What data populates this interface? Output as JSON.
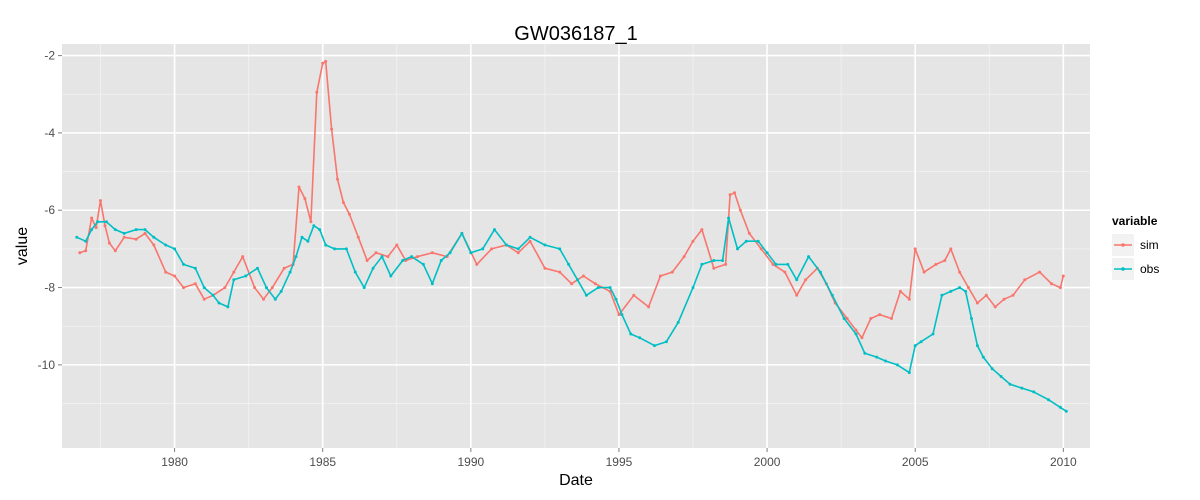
{
  "chart_data": {
    "type": "line",
    "title": "GW036187_1",
    "xlabel": "Date",
    "ylabel": "value",
    "x_range": [
      1976.2,
      2010.9
    ],
    "ylim": [
      -12.15,
      -1.7
    ],
    "x_ticks": [
      1980,
      1985,
      1990,
      1995,
      2000,
      2005,
      2010
    ],
    "x_tick_labels": [
      "1980",
      "1985",
      "1990",
      "1995",
      "2000",
      "2005",
      "2010"
    ],
    "y_ticks": [
      -10,
      -8,
      -6,
      -4,
      -2
    ],
    "y_tick_labels": [
      "-10",
      "-8",
      "-6",
      "-4",
      "-2"
    ],
    "grid": true,
    "legend": {
      "title": "variable",
      "position": "right"
    },
    "colors": {
      "sim": "#f8766d",
      "obs": "#00bfc4",
      "panel": "#e5e5e5",
      "grid": "#ffffff"
    },
    "series": [
      {
        "name": "sim",
        "color": "#f8766d",
        "x": [
          1976.8,
          1977.0,
          1977.2,
          1977.35,
          1977.5,
          1977.65,
          1977.8,
          1978.0,
          1978.3,
          1978.7,
          1979.0,
          1979.3,
          1979.7,
          1980.0,
          1980.3,
          1980.7,
          1981.0,
          1981.3,
          1981.7,
          1982.0,
          1982.3,
          1982.7,
          1983.0,
          1983.3,
          1983.7,
          1984.0,
          1984.2,
          1984.4,
          1984.6,
          1984.8,
          1985.0,
          1985.1,
          1985.3,
          1985.5,
          1985.7,
          1985.9,
          1986.2,
          1986.5,
          1986.8,
          1987.2,
          1987.5,
          1987.8,
          1988.2,
          1988.7,
          1989.2,
          1989.7,
          1990.2,
          1990.7,
          1991.2,
          1991.6,
          1992.0,
          1992.5,
          1993.0,
          1993.4,
          1993.8,
          1994.2,
          1994.7,
          1995.0,
          1995.5,
          1996.0,
          1996.4,
          1996.8,
          1997.2,
          1997.5,
          1997.8,
          1998.2,
          1998.6,
          1998.75,
          1998.9,
          1999.1,
          1999.4,
          1999.8,
          2000.2,
          2000.6,
          2001.0,
          2001.3,
          2001.7,
          2002.0,
          2002.3,
          2002.7,
          2003.0,
          2003.2,
          2003.5,
          2003.8,
          2004.2,
          2004.5,
          2004.8,
          2005.0,
          2005.3,
          2005.7,
          2006.0,
          2006.2,
          2006.5,
          2006.8,
          2007.1,
          2007.4,
          2007.7,
          2008.0,
          2008.3,
          2008.7,
          2009.2,
          2009.6,
          2009.9,
          2010.0
        ],
        "values": [
          -7.1,
          -7.05,
          -6.2,
          -6.45,
          -5.75,
          -6.4,
          -6.85,
          -7.05,
          -6.7,
          -6.75,
          -6.6,
          -6.9,
          -7.6,
          -7.7,
          -8.0,
          -7.9,
          -8.3,
          -8.2,
          -8.0,
          -7.6,
          -7.2,
          -8.0,
          -8.3,
          -8.0,
          -7.5,
          -7.4,
          -5.4,
          -5.7,
          -6.3,
          -2.95,
          -2.2,
          -2.15,
          -3.9,
          -5.2,
          -5.8,
          -6.1,
          -6.7,
          -7.3,
          -7.1,
          -7.2,
          -6.9,
          -7.3,
          -7.2,
          -7.1,
          -7.2,
          -6.6,
          -7.4,
          -7.0,
          -6.9,
          -7.1,
          -6.8,
          -7.5,
          -7.6,
          -7.9,
          -7.7,
          -7.9,
          -8.1,
          -8.7,
          -8.2,
          -8.5,
          -7.7,
          -7.6,
          -7.2,
          -6.8,
          -6.5,
          -7.5,
          -7.4,
          -5.6,
          -5.55,
          -6.0,
          -6.6,
          -7.0,
          -7.4,
          -7.6,
          -8.2,
          -7.8,
          -7.5,
          -7.9,
          -8.4,
          -8.8,
          -9.1,
          -9.3,
          -8.8,
          -8.7,
          -8.8,
          -8.1,
          -8.3,
          -7.0,
          -7.6,
          -7.4,
          -7.3,
          -7.0,
          -7.6,
          -8.0,
          -8.4,
          -8.2,
          -8.5,
          -8.3,
          -8.2,
          -7.8,
          -7.6,
          -7.9,
          -8.0,
          -7.7
        ]
      },
      {
        "name": "obs",
        "color": "#00bfc4",
        "x": [
          1976.7,
          1977.0,
          1977.2,
          1977.4,
          1977.7,
          1978.0,
          1978.3,
          1978.7,
          1979.0,
          1979.3,
          1979.7,
          1980.0,
          1980.3,
          1980.7,
          1981.0,
          1981.3,
          1981.5,
          1981.8,
          1982.0,
          1982.4,
          1982.8,
          1983.1,
          1983.4,
          1983.6,
          1983.9,
          1984.1,
          1984.3,
          1984.5,
          1984.7,
          1984.9,
          1985.1,
          1985.4,
          1985.8,
          1986.1,
          1986.4,
          1986.7,
          1987.0,
          1987.3,
          1987.7,
          1988.0,
          1988.4,
          1988.7,
          1989.0,
          1989.3,
          1989.7,
          1990.0,
          1990.4,
          1990.8,
          1991.2,
          1991.6,
          1992.0,
          1992.5,
          1993.0,
          1993.3,
          1993.6,
          1993.9,
          1994.3,
          1994.7,
          1994.9,
          1995.1,
          1995.4,
          1995.7,
          1996.2,
          1996.6,
          1997.0,
          1997.5,
          1997.8,
          1998.2,
          1998.5,
          1998.7,
          1999.0,
          1999.3,
          1999.7,
          2000.0,
          2000.3,
          2000.7,
          2001.0,
          2001.4,
          2001.8,
          2002.2,
          2002.6,
          2003.0,
          2003.3,
          2003.7,
          2004.0,
          2004.4,
          2004.8,
          2005.0,
          2005.2,
          2005.6,
          2005.9,
          2006.2,
          2006.5,
          2006.7,
          2006.9,
          2007.1,
          2007.3,
          2007.6,
          2007.9,
          2008.2,
          2008.6,
          2009.0,
          2009.5,
          2009.9,
          2010.1
        ],
        "values": [
          -6.7,
          -6.8,
          -6.5,
          -6.3,
          -6.3,
          -6.5,
          -6.6,
          -6.5,
          -6.5,
          -6.7,
          -6.9,
          -7.0,
          -7.4,
          -7.5,
          -8.0,
          -8.2,
          -8.4,
          -8.5,
          -7.8,
          -7.7,
          -7.5,
          -8.0,
          -8.3,
          -8.1,
          -7.6,
          -7.2,
          -6.7,
          -6.8,
          -6.4,
          -6.5,
          -6.9,
          -7.0,
          -7.0,
          -7.6,
          -8.0,
          -7.5,
          -7.2,
          -7.7,
          -7.3,
          -7.2,
          -7.4,
          -7.9,
          -7.3,
          -7.1,
          -6.6,
          -7.1,
          -7.0,
          -6.5,
          -6.9,
          -7.0,
          -6.7,
          -6.9,
          -7.0,
          -7.4,
          -7.8,
          -8.2,
          -8.0,
          -8.0,
          -8.3,
          -8.7,
          -9.2,
          -9.3,
          -9.5,
          -9.4,
          -8.9,
          -8.0,
          -7.4,
          -7.3,
          -7.3,
          -6.2,
          -7.0,
          -6.8,
          -6.8,
          -7.1,
          -7.4,
          -7.4,
          -7.8,
          -7.2,
          -7.6,
          -8.2,
          -8.8,
          -9.2,
          -9.7,
          -9.8,
          -9.9,
          -10.0,
          -10.2,
          -9.5,
          -9.4,
          -9.2,
          -8.2,
          -8.1,
          -8.0,
          -8.1,
          -8.8,
          -9.5,
          -9.8,
          -10.1,
          -10.3,
          -10.5,
          -10.6,
          -10.7,
          -10.9,
          -11.1,
          -11.2
        ]
      }
    ]
  }
}
